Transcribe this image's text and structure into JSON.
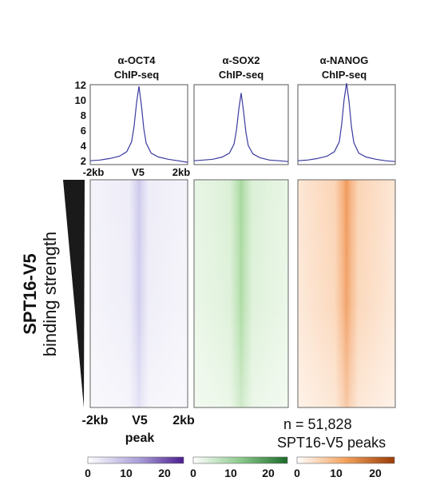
{
  "chart_data": {
    "type": "heatmap",
    "panels": [
      {
        "title": [
          "α-OCT4",
          "ChIP-seq"
        ],
        "profile": {
          "x": [
            -2,
            -1.6,
            -1.2,
            -0.8,
            -0.5,
            -0.3,
            -0.2,
            -0.1,
            0,
            0.1,
            0.2,
            0.3,
            0.5,
            0.8,
            1.2,
            1.6,
            2
          ],
          "y": [
            2.0,
            2.1,
            2.3,
            2.6,
            3.2,
            4.5,
            6.5,
            9.5,
            11.8,
            9.3,
            6.2,
            4.3,
            3.0,
            2.5,
            2.2,
            2.0,
            1.8
          ]
        },
        "colormap": [
          "#ffffff",
          "#4b1d8f"
        ]
      },
      {
        "title": [
          "α-SOX2",
          "ChIP-seq"
        ],
        "profile": {
          "x": [
            -2,
            -1.6,
            -1.2,
            -0.8,
            -0.5,
            -0.3,
            -0.2,
            -0.1,
            0,
            0.1,
            0.2,
            0.3,
            0.5,
            0.8,
            1.2,
            1.6,
            2
          ],
          "y": [
            2.0,
            2.1,
            2.2,
            2.5,
            3.0,
            4.2,
            6.0,
            8.8,
            10.9,
            8.6,
            5.8,
            4.0,
            2.9,
            2.4,
            2.1,
            2.0,
            1.9
          ]
        },
        "colormap": [
          "#ffffff",
          "#1b6b2a"
        ]
      },
      {
        "title": [
          "α-NANOG",
          "ChIP-seq"
        ],
        "profile": {
          "x": [
            -2,
            -1.6,
            -1.2,
            -0.8,
            -0.5,
            -0.3,
            -0.2,
            -0.1,
            0,
            0.1,
            0.2,
            0.3,
            0.5,
            0.8,
            1.2,
            1.6,
            2
          ],
          "y": [
            2.0,
            2.1,
            2.3,
            2.6,
            3.2,
            4.5,
            6.8,
            10.0,
            12.2,
            9.8,
            6.5,
            4.4,
            3.0,
            2.5,
            2.2,
            2.0,
            1.9
          ]
        },
        "colormap": [
          "#ffffff",
          "#9a3b06"
        ]
      }
    ],
    "profile_yticks": [
      "12",
      "10",
      "8",
      "6",
      "4",
      "2"
    ],
    "profile_ylim": [
      1.5,
      12
    ],
    "profile_xticks": [
      "-2kb",
      "V5",
      "2kb"
    ],
    "heatmap_xticks": [
      "-2kb",
      "V5",
      "2kb"
    ],
    "heatmap_xlabel": "peak",
    "ylabel": [
      "SPT16-V5",
      "binding strength"
    ],
    "annotation": [
      "n = 51,828",
      "SPT16-V5 peaks"
    ],
    "colorbar_ticks": [
      "0",
      "10",
      "20"
    ],
    "colorbar_range": [
      0,
      25
    ]
  }
}
